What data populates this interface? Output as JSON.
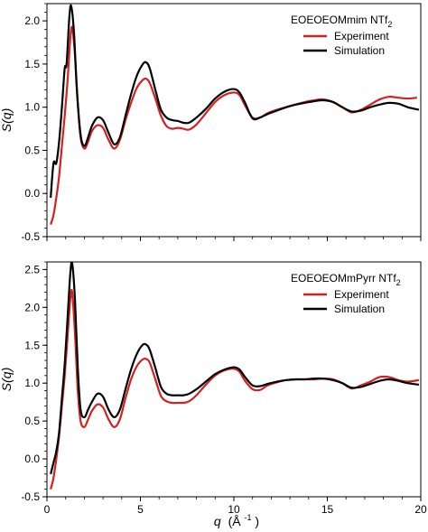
{
  "chart_data": [
    {
      "type": "line",
      "panel": "top",
      "legend_title": "EOEOEOMmim NTf",
      "legend_title_sub": "2",
      "xlim": [
        0,
        20
      ],
      "ylim": [
        -0.5,
        2.2
      ],
      "yticks": [
        "-0.5",
        "0.0",
        "0.5",
        "1.0",
        "1.5",
        "2.0"
      ],
      "ytick_values": [
        -0.5,
        0.0,
        0.5,
        1.0,
        1.5,
        2.0
      ],
      "ylabel": "S(q)",
      "legend_position": "top-right",
      "series": [
        {
          "name": "Experiment",
          "color": "#d42020",
          "x": [
            0.2,
            0.35,
            0.5,
            0.65,
            0.8,
            0.95,
            1.1,
            1.25,
            1.35,
            1.5,
            1.65,
            1.8,
            2.0,
            2.2,
            2.4,
            2.7,
            3.0,
            3.3,
            3.6,
            3.9,
            4.2,
            4.5,
            4.8,
            5.1,
            5.3,
            5.5,
            5.8,
            6.1,
            6.4,
            6.7,
            7.0,
            7.3,
            7.6,
            8.0,
            8.5,
            9.0,
            9.5,
            10.0,
            10.3,
            10.6,
            11.0,
            11.4,
            11.8,
            12.3,
            12.8,
            13.3,
            13.8,
            14.3,
            14.8,
            15.3,
            15.8,
            16.3,
            16.8,
            17.3,
            17.8,
            18.3,
            18.8,
            19.3,
            19.8
          ],
          "values": [
            -0.36,
            -0.25,
            -0.05,
            0.2,
            0.55,
            0.9,
            1.3,
            1.8,
            1.92,
            1.6,
            1.05,
            0.65,
            0.52,
            0.6,
            0.72,
            0.79,
            0.76,
            0.62,
            0.52,
            0.62,
            0.85,
            1.05,
            1.22,
            1.31,
            1.33,
            1.28,
            1.1,
            0.9,
            0.78,
            0.75,
            0.76,
            0.75,
            0.74,
            0.8,
            0.93,
            1.06,
            1.14,
            1.17,
            1.14,
            1.02,
            0.88,
            0.88,
            0.93,
            0.97,
            1.0,
            1.03,
            1.06,
            1.08,
            1.09,
            1.06,
            1.0,
            0.94,
            0.97,
            1.03,
            1.09,
            1.12,
            1.11,
            1.1,
            1.11
          ]
        },
        {
          "name": "Simulation",
          "color": "#000000",
          "x": [
            0.2,
            0.35,
            0.5,
            0.65,
            0.8,
            0.95,
            1.05,
            1.2,
            1.3,
            1.45,
            1.6,
            1.8,
            2.0,
            2.2,
            2.4,
            2.7,
            3.0,
            3.3,
            3.6,
            3.9,
            4.2,
            4.5,
            4.8,
            5.1,
            5.3,
            5.5,
            5.8,
            6.1,
            6.4,
            6.7,
            7.0,
            7.3,
            7.6,
            8.0,
            8.5,
            9.0,
            9.5,
            10.0,
            10.3,
            10.6,
            11.0,
            11.4,
            11.8,
            12.3,
            12.8,
            13.3,
            13.8,
            14.3,
            14.8,
            15.3,
            15.8,
            16.3,
            16.8,
            17.3,
            17.8,
            18.3,
            18.8,
            19.3,
            19.9
          ],
          "values": [
            -0.05,
            0.35,
            0.35,
            0.6,
            1.0,
            1.45,
            1.5,
            2.05,
            2.17,
            1.85,
            1.2,
            0.68,
            0.55,
            0.65,
            0.78,
            0.88,
            0.85,
            0.7,
            0.57,
            0.65,
            0.9,
            1.15,
            1.36,
            1.49,
            1.52,
            1.45,
            1.2,
            0.97,
            0.88,
            0.85,
            0.84,
            0.82,
            0.82,
            0.88,
            0.98,
            1.1,
            1.18,
            1.21,
            1.17,
            1.05,
            0.87,
            0.88,
            0.92,
            0.96,
            1.0,
            1.03,
            1.05,
            1.07,
            1.08,
            1.06,
            1.0,
            0.95,
            0.96,
            1.0,
            1.03,
            1.05,
            1.04,
            1.0,
            0.97
          ]
        }
      ]
    },
    {
      "type": "line",
      "panel": "bottom",
      "legend_title": "EOEOEOMmPyrr NTf",
      "legend_title_sub": "2",
      "xlim": [
        0,
        20
      ],
      "ylim": [
        -0.5,
        2.6
      ],
      "yticks": [
        "-0.5",
        "0.0",
        "0.5",
        "1.0",
        "1.5",
        "2.0",
        "2.5"
      ],
      "ytick_values": [
        -0.5,
        0.0,
        0.5,
        1.0,
        1.5,
        2.0,
        2.5
      ],
      "xticks": [
        "0",
        "5",
        "10",
        "15",
        "20"
      ],
      "xtick_values": [
        0,
        5,
        10,
        15,
        20
      ],
      "xlabel_var": "q",
      "xlabel_unit": "(Å",
      "xlabel_exp": "-1",
      "xlabel_close": ")",
      "ylabel": "S(q)",
      "legend_position": "top-right",
      "series": [
        {
          "name": "Experiment",
          "color": "#d42020",
          "x": [
            0.2,
            0.35,
            0.5,
            0.65,
            0.8,
            0.95,
            1.1,
            1.25,
            1.35,
            1.5,
            1.65,
            1.8,
            2.0,
            2.2,
            2.4,
            2.7,
            3.0,
            3.3,
            3.6,
            3.9,
            4.2,
            4.5,
            4.8,
            5.1,
            5.3,
            5.5,
            5.8,
            6.1,
            6.4,
            6.7,
            7.0,
            7.3,
            7.6,
            8.0,
            8.5,
            9.0,
            9.5,
            10.0,
            10.3,
            10.6,
            11.0,
            11.4,
            11.8,
            12.3,
            12.8,
            13.3,
            13.8,
            14.3,
            14.8,
            15.3,
            15.8,
            16.3,
            16.8,
            17.3,
            17.8,
            18.3,
            18.8,
            19.3,
            19.9
          ],
          "values": [
            -0.4,
            -0.25,
            0.0,
            0.3,
            0.7,
            1.1,
            1.6,
            2.1,
            2.2,
            1.65,
            0.9,
            0.5,
            0.42,
            0.52,
            0.63,
            0.72,
            0.68,
            0.52,
            0.42,
            0.52,
            0.8,
            1.05,
            1.22,
            1.31,
            1.32,
            1.27,
            1.05,
            0.83,
            0.76,
            0.74,
            0.74,
            0.74,
            0.76,
            0.84,
            0.98,
            1.1,
            1.17,
            1.19,
            1.15,
            1.03,
            0.92,
            0.91,
            0.97,
            1.01,
            1.04,
            1.05,
            1.05,
            1.05,
            1.06,
            1.05,
            1.0,
            0.93,
            0.97,
            1.02,
            1.08,
            1.08,
            1.04,
            1.02,
            1.04
          ]
        },
        {
          "name": "Simulation",
          "color": "#000000",
          "x": [
            0.2,
            0.35,
            0.5,
            0.65,
            0.8,
            0.95,
            1.1,
            1.25,
            1.35,
            1.5,
            1.65,
            1.8,
            2.0,
            2.2,
            2.4,
            2.7,
            3.0,
            3.3,
            3.6,
            3.9,
            4.2,
            4.5,
            4.8,
            5.1,
            5.3,
            5.5,
            5.8,
            6.1,
            6.4,
            6.7,
            7.0,
            7.3,
            7.6,
            8.0,
            8.5,
            9.0,
            9.5,
            10.0,
            10.3,
            10.6,
            11.0,
            11.4,
            11.8,
            12.3,
            12.8,
            13.3,
            13.8,
            14.3,
            14.8,
            15.3,
            15.8,
            16.3,
            16.8,
            17.3,
            17.8,
            18.3,
            18.8,
            19.3,
            19.9
          ],
          "values": [
            -0.2,
            -0.05,
            0.1,
            0.35,
            0.8,
            1.25,
            1.85,
            2.45,
            2.58,
            2.1,
            1.2,
            0.65,
            0.55,
            0.65,
            0.75,
            0.86,
            0.82,
            0.65,
            0.55,
            0.65,
            0.92,
            1.18,
            1.38,
            1.5,
            1.51,
            1.44,
            1.2,
            0.95,
            0.86,
            0.84,
            0.84,
            0.84,
            0.86,
            0.92,
            1.02,
            1.12,
            1.18,
            1.21,
            1.18,
            1.08,
            0.97,
            0.96,
            0.99,
            1.02,
            1.04,
            1.05,
            1.05,
            1.06,
            1.06,
            1.04,
            1.0,
            0.94,
            0.95,
            0.99,
            1.03,
            1.05,
            1.03,
            1.0,
            0.98
          ]
        }
      ]
    }
  ]
}
